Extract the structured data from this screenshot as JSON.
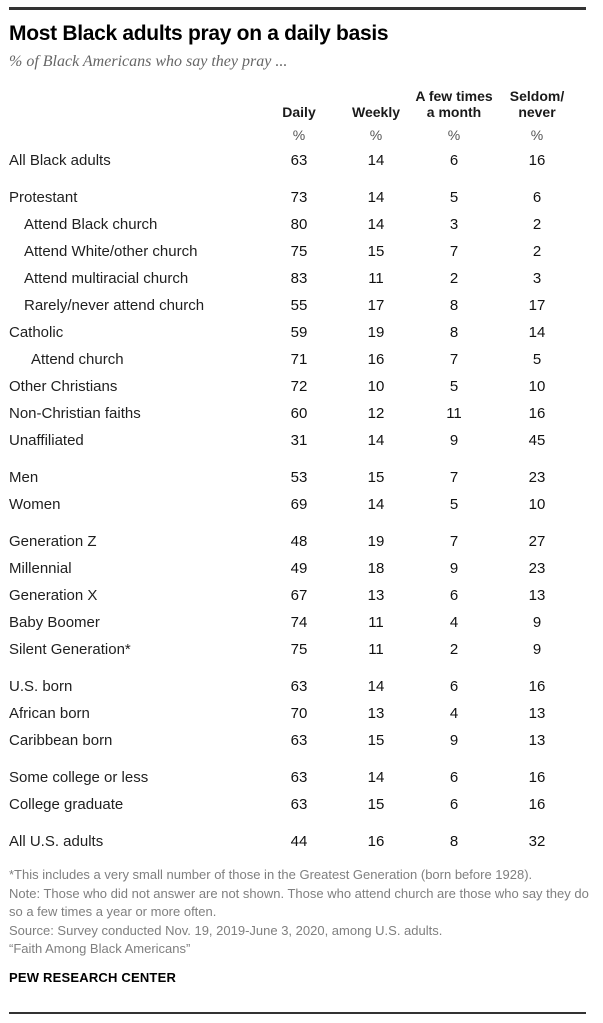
{
  "chart_data": {
    "type": "table",
    "title": "Most Black adults pray on a daily basis",
    "subtitle": "% of Black Americans who say they pray ...",
    "unit": "%",
    "columns": [
      {
        "label": "Daily",
        "lines": [
          "Daily"
        ]
      },
      {
        "label": "Weekly",
        "lines": [
          "Weekly"
        ]
      },
      {
        "label": "A few times a month",
        "lines": [
          "A few times",
          "a month"
        ]
      },
      {
        "label": "Seldom/never",
        "lines": [
          "Seldom/",
          "never"
        ]
      }
    ],
    "rows": [
      {
        "label": "All Black adults",
        "indent": 0,
        "gap_before": false,
        "values": [
          63,
          14,
          6,
          16
        ]
      },
      {
        "label": "Protestant",
        "indent": 0,
        "gap_before": true,
        "values": [
          73,
          14,
          5,
          6
        ]
      },
      {
        "label": "Attend Black church",
        "indent": 1,
        "gap_before": false,
        "values": [
          80,
          14,
          3,
          2
        ]
      },
      {
        "label": "Attend White/other church",
        "indent": 1,
        "gap_before": false,
        "values": [
          75,
          15,
          7,
          2
        ]
      },
      {
        "label": "Attend multiracial church",
        "indent": 1,
        "gap_before": false,
        "values": [
          83,
          11,
          2,
          3
        ]
      },
      {
        "label": "Rarely/never attend church",
        "indent": 1,
        "gap_before": false,
        "values": [
          55,
          17,
          8,
          17
        ]
      },
      {
        "label": "Catholic",
        "indent": 0,
        "gap_before": false,
        "values": [
          59,
          19,
          8,
          14
        ]
      },
      {
        "label": "Attend church",
        "indent": 2,
        "gap_before": false,
        "values": [
          71,
          16,
          7,
          5
        ]
      },
      {
        "label": "Other Christians",
        "indent": 0,
        "gap_before": false,
        "values": [
          72,
          10,
          5,
          10
        ]
      },
      {
        "label": "Non-Christian faiths",
        "indent": 0,
        "gap_before": false,
        "values": [
          60,
          12,
          11,
          16
        ]
      },
      {
        "label": "Unaffiliated",
        "indent": 0,
        "gap_before": false,
        "values": [
          31,
          14,
          9,
          45
        ]
      },
      {
        "label": "Men",
        "indent": 0,
        "gap_before": true,
        "values": [
          53,
          15,
          7,
          23
        ]
      },
      {
        "label": "Women",
        "indent": 0,
        "gap_before": false,
        "values": [
          69,
          14,
          5,
          10
        ]
      },
      {
        "label": "Generation Z",
        "indent": 0,
        "gap_before": true,
        "values": [
          48,
          19,
          7,
          27
        ]
      },
      {
        "label": "Millennial",
        "indent": 0,
        "gap_before": false,
        "values": [
          49,
          18,
          9,
          23
        ]
      },
      {
        "label": "Generation X",
        "indent": 0,
        "gap_before": false,
        "values": [
          67,
          13,
          6,
          13
        ]
      },
      {
        "label": "Baby Boomer",
        "indent": 0,
        "gap_before": false,
        "values": [
          74,
          11,
          4,
          9
        ]
      },
      {
        "label": "Silent Generation*",
        "indent": 0,
        "gap_before": false,
        "values": [
          75,
          11,
          2,
          9
        ]
      },
      {
        "label": "U.S. born",
        "indent": 0,
        "gap_before": true,
        "values": [
          63,
          14,
          6,
          16
        ]
      },
      {
        "label": "African born",
        "indent": 0,
        "gap_before": false,
        "values": [
          70,
          13,
          4,
          13
        ]
      },
      {
        "label": "Caribbean born",
        "indent": 0,
        "gap_before": false,
        "values": [
          63,
          15,
          9,
          13
        ]
      },
      {
        "label": "Some college or less",
        "indent": 0,
        "gap_before": true,
        "values": [
          63,
          14,
          6,
          16
        ]
      },
      {
        "label": "College graduate",
        "indent": 0,
        "gap_before": false,
        "values": [
          63,
          15,
          6,
          16
        ]
      },
      {
        "label": "All U.S. adults",
        "indent": 0,
        "gap_before": true,
        "values": [
          44,
          16,
          8,
          32
        ]
      }
    ]
  },
  "footer": {
    "notes": [
      "*This includes a very small number of those in the Greatest Generation (born before 1928).",
      "Note: Those who did not answer are not shown. Those who attend church are those who say they do so a few times a year or more often.",
      "Source: Survey conducted Nov. 19, 2019-June 3, 2020, among U.S. adults.",
      "“Faith Among Black Americans”"
    ],
    "brand": "PEW RESEARCH CENTER"
  },
  "colors": {
    "title_black": "#000000",
    "subtitle_gray": "#666666",
    "note_gray": "#7f7f7f",
    "rule_dark": "#333333"
  }
}
